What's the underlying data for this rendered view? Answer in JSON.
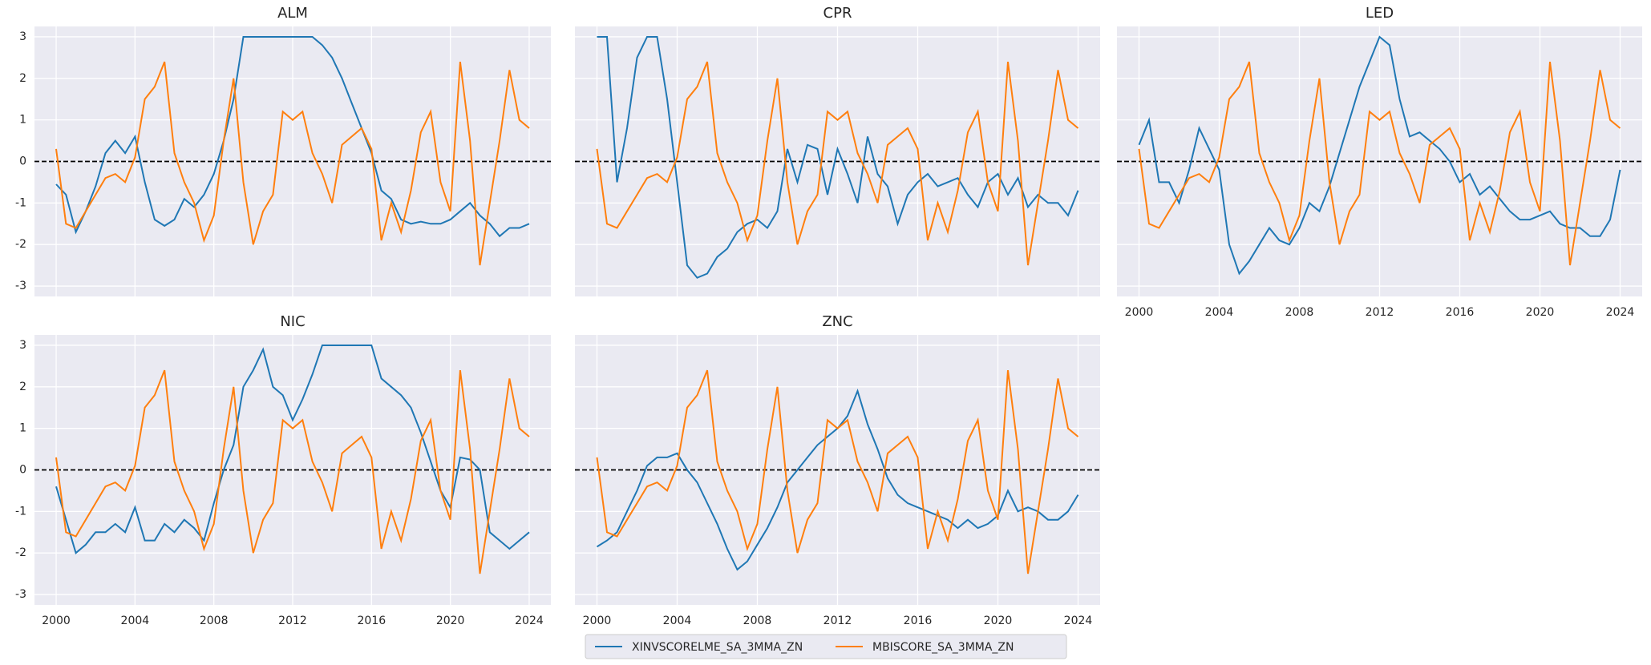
{
  "chart_data": [
    {
      "type": "line",
      "title": "ALM",
      "hline": 0,
      "x": [
        2000,
        2000.5,
        2001,
        2001.5,
        2002,
        2002.5,
        2003,
        2003.5,
        2004,
        2004.5,
        2005,
        2005.5,
        2006,
        2006.5,
        2007,
        2007.5,
        2008,
        2008.5,
        2009,
        2009.5,
        2010,
        2010.5,
        2011,
        2011.5,
        2012,
        2012.5,
        2013,
        2013.5,
        2014,
        2014.5,
        2015,
        2015.5,
        2016,
        2016.5,
        2017,
        2017.5,
        2018,
        2018.5,
        2019,
        2019.5,
        2020,
        2020.5,
        2021,
        2021.5,
        2022,
        2022.5,
        2023,
        2023.5,
        2024
      ],
      "series": [
        {
          "name": "XINVSCORELME_SA_3MMA_ZN",
          "color": "#1f77b4",
          "values": [
            -0.55,
            -0.8,
            -1.7,
            -1.2,
            -0.6,
            0.2,
            0.5,
            0.2,
            0.6,
            -0.5,
            -1.4,
            -1.55,
            -1.4,
            -0.9,
            -1.1,
            -0.8,
            -0.3,
            0.5,
            1.5,
            3,
            3,
            3,
            3,
            3,
            3,
            3,
            3,
            2.8,
            2.5,
            2.0,
            1.4,
            0.8,
            0.2,
            -0.7,
            -0.9,
            -1.4,
            -1.5,
            -1.45,
            -1.5,
            -1.5,
            -1.4,
            -1.2,
            -1.0,
            -1.3,
            -1.5,
            -1.8,
            -1.6,
            -1.6,
            -1.5
          ]
        },
        {
          "name": "MBISCORE_SA_3MMA_ZN",
          "color": "#ff7f0e",
          "values": [
            0.3,
            -1.5,
            -1.6,
            -1.2,
            -0.8,
            -0.4,
            -0.3,
            -0.5,
            0.1,
            1.5,
            1.8,
            2.4,
            0.2,
            -0.5,
            -1.0,
            -1.9,
            -1.3,
            0.5,
            2.0,
            -0.5,
            -2.0,
            -1.2,
            -0.8,
            1.2,
            1.0,
            1.2,
            0.2,
            -0.3,
            -1.0,
            0.4,
            0.6,
            0.8,
            0.3,
            -1.9,
            -1.0,
            -1.7,
            -0.7,
            0.7,
            1.2,
            -0.5,
            -1.2,
            2.4,
            0.5,
            -2.5,
            -1.0,
            0.5,
            2.2,
            1.0,
            0.8
          ]
        }
      ],
      "xlim": [
        1998.9,
        2025.1
      ],
      "ylim": [
        -3.25,
        3.25
      ],
      "xticks": [
        2000,
        2004,
        2008,
        2012,
        2016,
        2020,
        2024
      ],
      "yticks": [
        -3,
        -2,
        -1,
        0,
        1,
        2,
        3
      ]
    },
    {
      "type": "line",
      "title": "CPR",
      "hline": 0,
      "x": [
        2000,
        2000.5,
        2001,
        2001.5,
        2002,
        2002.5,
        2003,
        2003.5,
        2004,
        2004.5,
        2005,
        2005.5,
        2006,
        2006.5,
        2007,
        2007.5,
        2008,
        2008.5,
        2009,
        2009.5,
        2010,
        2010.5,
        2011,
        2011.5,
        2012,
        2012.5,
        2013,
        2013.5,
        2014,
        2014.5,
        2015,
        2015.5,
        2016,
        2016.5,
        2017,
        2017.5,
        2018,
        2018.5,
        2019,
        2019.5,
        2020,
        2020.5,
        2021,
        2021.5,
        2022,
        2022.5,
        2023,
        2023.5,
        2024
      ],
      "series": [
        {
          "name": "XINVSCORELME_SA_3MMA_ZN",
          "color": "#1f77b4",
          "values": [
            3,
            3,
            -0.5,
            0.8,
            2.5,
            3,
            3,
            1.5,
            -0.5,
            -2.5,
            -2.8,
            -2.7,
            -2.3,
            -2.1,
            -1.7,
            -1.5,
            -1.4,
            -1.6,
            -1.2,
            0.3,
            -0.5,
            0.4,
            0.3,
            -0.8,
            0.3,
            -0.3,
            -1.0,
            0.6,
            -0.3,
            -0.6,
            -1.5,
            -0.8,
            -0.5,
            -0.3,
            -0.6,
            -0.5,
            -0.4,
            -0.8,
            -1.1,
            -0.5,
            -0.3,
            -0.8,
            -0.4,
            -1.1,
            -0.8,
            -1.0,
            -1.0,
            -1.3,
            -0.7
          ]
        },
        {
          "name": "MBISCORE_SA_3MMA_ZN",
          "color": "#ff7f0e",
          "values": [
            0.3,
            -1.5,
            -1.6,
            -1.2,
            -0.8,
            -0.4,
            -0.3,
            -0.5,
            0.1,
            1.5,
            1.8,
            2.4,
            0.2,
            -0.5,
            -1.0,
            -1.9,
            -1.3,
            0.5,
            2.0,
            -0.5,
            -2.0,
            -1.2,
            -0.8,
            1.2,
            1.0,
            1.2,
            0.2,
            -0.3,
            -1.0,
            0.4,
            0.6,
            0.8,
            0.3,
            -1.9,
            -1.0,
            -1.7,
            -0.7,
            0.7,
            1.2,
            -0.5,
            -1.2,
            2.4,
            0.5,
            -2.5,
            -1.0,
            0.5,
            2.2,
            1.0,
            0.8
          ]
        }
      ],
      "xlim": [
        1998.9,
        2025.1
      ],
      "ylim": [
        -3.25,
        3.25
      ],
      "xticks": [
        2000,
        2004,
        2008,
        2012,
        2016,
        2020,
        2024
      ],
      "yticks": [
        -3,
        -2,
        -1,
        0,
        1,
        2,
        3
      ]
    },
    {
      "type": "line",
      "title": "LED",
      "hline": 0,
      "x": [
        2000,
        2000.5,
        2001,
        2001.5,
        2002,
        2002.5,
        2003,
        2003.5,
        2004,
        2004.5,
        2005,
        2005.5,
        2006,
        2006.5,
        2007,
        2007.5,
        2008,
        2008.5,
        2009,
        2009.5,
        2010,
        2010.5,
        2011,
        2011.5,
        2012,
        2012.5,
        2013,
        2013.5,
        2014,
        2014.5,
        2015,
        2015.5,
        2016,
        2016.5,
        2017,
        2017.5,
        2018,
        2018.5,
        2019,
        2019.5,
        2020,
        2020.5,
        2021,
        2021.5,
        2022,
        2022.5,
        2023,
        2023.5,
        2024
      ],
      "series": [
        {
          "name": "XINVSCORELME_SA_3MMA_ZN",
          "color": "#1f77b4",
          "values": [
            0.4,
            1.0,
            -0.5,
            -0.5,
            -1.0,
            -0.2,
            0.8,
            0.3,
            -0.2,
            -2.0,
            -2.7,
            -2.4,
            -2.0,
            -1.6,
            -1.9,
            -2.0,
            -1.6,
            -1.0,
            -1.2,
            -0.6,
            0.2,
            1.0,
            1.8,
            2.4,
            3,
            2.8,
            1.5,
            0.6,
            0.7,
            0.5,
            0.3,
            0.0,
            -0.5,
            -0.3,
            -0.8,
            -0.6,
            -0.9,
            -1.2,
            -1.4,
            -1.4,
            -1.3,
            -1.2,
            -1.5,
            -1.6,
            -1.6,
            -1.8,
            -1.8,
            -1.4,
            -0.2
          ]
        },
        {
          "name": "MBISCORE_SA_3MMA_ZN",
          "color": "#ff7f0e",
          "values": [
            0.3,
            -1.5,
            -1.6,
            -1.2,
            -0.8,
            -0.4,
            -0.3,
            -0.5,
            0.1,
            1.5,
            1.8,
            2.4,
            0.2,
            -0.5,
            -1.0,
            -1.9,
            -1.3,
            0.5,
            2.0,
            -0.5,
            -2.0,
            -1.2,
            -0.8,
            1.2,
            1.0,
            1.2,
            0.2,
            -0.3,
            -1.0,
            0.4,
            0.6,
            0.8,
            0.3,
            -1.9,
            -1.0,
            -1.7,
            -0.7,
            0.7,
            1.2,
            -0.5,
            -1.2,
            2.4,
            0.5,
            -2.5,
            -1.0,
            0.5,
            2.2,
            1.0,
            0.8
          ]
        }
      ],
      "xlim": [
        1998.9,
        2025.1
      ],
      "ylim": [
        -3.25,
        3.25
      ],
      "xticks": [
        2000,
        2004,
        2008,
        2012,
        2016,
        2020,
        2024
      ],
      "yticks": [
        -3,
        -2,
        -1,
        0,
        1,
        2,
        3
      ]
    },
    {
      "type": "line",
      "title": "NIC",
      "hline": 0,
      "x": [
        2000,
        2000.5,
        2001,
        2001.5,
        2002,
        2002.5,
        2003,
        2003.5,
        2004,
        2004.5,
        2005,
        2005.5,
        2006,
        2006.5,
        2007,
        2007.5,
        2008,
        2008.5,
        2009,
        2009.5,
        2010,
        2010.5,
        2011,
        2011.5,
        2012,
        2012.5,
        2013,
        2013.5,
        2014,
        2014.5,
        2015,
        2015.5,
        2016,
        2016.5,
        2017,
        2017.5,
        2018,
        2018.5,
        2019,
        2019.5,
        2020,
        2020.5,
        2021,
        2021.5,
        2022,
        2022.5,
        2023,
        2023.5,
        2024
      ],
      "series": [
        {
          "name": "XINVSCORELME_SA_3MMA_ZN",
          "color": "#1f77b4",
          "values": [
            -0.4,
            -1.2,
            -2.0,
            -1.8,
            -1.5,
            -1.5,
            -1.3,
            -1.5,
            -0.9,
            -1.7,
            -1.7,
            -1.3,
            -1.5,
            -1.2,
            -1.4,
            -1.7,
            -0.8,
            0.0,
            0.6,
            2.0,
            2.4,
            2.9,
            2.0,
            1.8,
            1.2,
            1.7,
            2.3,
            3,
            3,
            3,
            3,
            3,
            3,
            2.2,
            2.0,
            1.8,
            1.5,
            0.9,
            0.2,
            -0.5,
            -0.9,
            0.3,
            0.25,
            0.0,
            -1.5,
            -1.7,
            -1.9,
            -1.7,
            -1.5
          ]
        },
        {
          "name": "MBISCORE_SA_3MMA_ZN",
          "color": "#ff7f0e",
          "values": [
            0.3,
            -1.5,
            -1.6,
            -1.2,
            -0.8,
            -0.4,
            -0.3,
            -0.5,
            0.1,
            1.5,
            1.8,
            2.4,
            0.2,
            -0.5,
            -1.0,
            -1.9,
            -1.3,
            0.5,
            2.0,
            -0.5,
            -2.0,
            -1.2,
            -0.8,
            1.2,
            1.0,
            1.2,
            0.2,
            -0.3,
            -1.0,
            0.4,
            0.6,
            0.8,
            0.3,
            -1.9,
            -1.0,
            -1.7,
            -0.7,
            0.7,
            1.2,
            -0.5,
            -1.2,
            2.4,
            0.5,
            -2.5,
            -1.0,
            0.5,
            2.2,
            1.0,
            0.8
          ]
        }
      ],
      "xlim": [
        1998.9,
        2025.1
      ],
      "ylim": [
        -3.25,
        3.25
      ],
      "xticks": [
        2000,
        2004,
        2008,
        2012,
        2016,
        2020,
        2024
      ],
      "yticks": [
        -3,
        -2,
        -1,
        0,
        1,
        2,
        3
      ]
    },
    {
      "type": "line",
      "title": "ZNC",
      "hline": 0,
      "x": [
        2000,
        2000.5,
        2001,
        2001.5,
        2002,
        2002.5,
        2003,
        2003.5,
        2004,
        2004.5,
        2005,
        2005.5,
        2006,
        2006.5,
        2007,
        2007.5,
        2008,
        2008.5,
        2009,
        2009.5,
        2010,
        2010.5,
        2011,
        2011.5,
        2012,
        2012.5,
        2013,
        2013.5,
        2014,
        2014.5,
        2015,
        2015.5,
        2016,
        2016.5,
        2017,
        2017.5,
        2018,
        2018.5,
        2019,
        2019.5,
        2020,
        2020.5,
        2021,
        2021.5,
        2022,
        2022.5,
        2023,
        2023.5,
        2024
      ],
      "series": [
        {
          "name": "XINVSCORELME_SA_3MMA_ZN",
          "color": "#1f77b4",
          "values": [
            -1.85,
            -1.7,
            -1.5,
            -1.0,
            -0.5,
            0.1,
            0.3,
            0.3,
            0.4,
            0.0,
            -0.3,
            -0.8,
            -1.3,
            -1.9,
            -2.4,
            -2.2,
            -1.8,
            -1.4,
            -0.9,
            -0.3,
            0.0,
            0.3,
            0.6,
            0.8,
            1.0,
            1.3,
            1.9,
            1.1,
            0.5,
            -0.2,
            -0.6,
            -0.8,
            -0.9,
            -1.0,
            -1.1,
            -1.2,
            -1.4,
            -1.2,
            -1.4,
            -1.3,
            -1.1,
            -0.5,
            -1.0,
            -0.9,
            -1.0,
            -1.2,
            -1.2,
            -1.0,
            -0.6
          ]
        },
        {
          "name": "MBISCORE_SA_3MMA_ZN",
          "color": "#ff7f0e",
          "values": [
            0.3,
            -1.5,
            -1.6,
            -1.2,
            -0.8,
            -0.4,
            -0.3,
            -0.5,
            0.1,
            1.5,
            1.8,
            2.4,
            0.2,
            -0.5,
            -1.0,
            -1.9,
            -1.3,
            0.5,
            2.0,
            -0.5,
            -2.0,
            -1.2,
            -0.8,
            1.2,
            1.0,
            1.2,
            0.2,
            -0.3,
            -1.0,
            0.4,
            0.6,
            0.8,
            0.3,
            -1.9,
            -1.0,
            -1.7,
            -0.7,
            0.7,
            1.2,
            -0.5,
            -1.2,
            2.4,
            0.5,
            -2.5,
            -1.0,
            0.5,
            2.2,
            1.0,
            0.8
          ]
        }
      ],
      "xlim": [
        1998.9,
        2025.1
      ],
      "ylim": [
        -3.25,
        3.25
      ],
      "xticks": [
        2000,
        2004,
        2008,
        2012,
        2016,
        2020,
        2024
      ],
      "yticks": [
        -3,
        -2,
        -1,
        0,
        1,
        2,
        3
      ]
    }
  ]
}
